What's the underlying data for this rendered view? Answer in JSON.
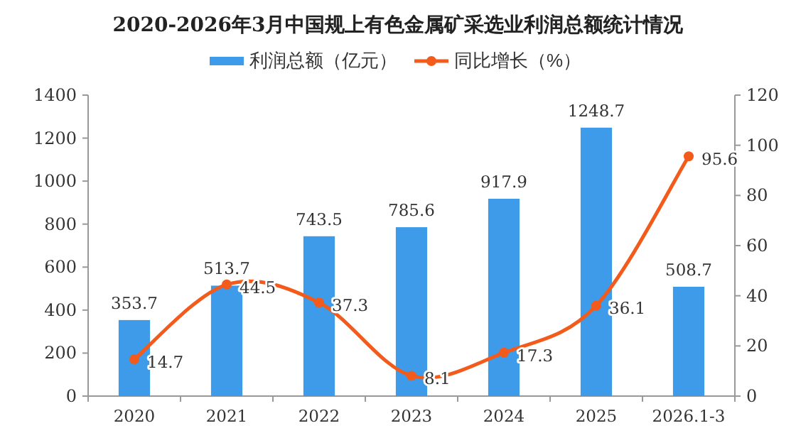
{
  "chart_data": {
    "type": "bar",
    "title": "2020-2026年3月中国规上有色金属矿采选业利润总额统计情况",
    "categories": [
      "2020",
      "2021",
      "2022",
      "2023",
      "2024",
      "2025",
      "2026.1-3"
    ],
    "series": [
      {
        "name": "利润总额（亿元）",
        "color": "#3d9be9",
        "values": [
          353.7,
          513.7,
          743.5,
          785.6,
          917.9,
          1248.7,
          508.7
        ]
      },
      {
        "name": "同比增长（%）",
        "type": "line",
        "axis": "y2",
        "color": "#f25b1b",
        "values": [
          14.7,
          44.5,
          37.3,
          8.1,
          17.3,
          36.1,
          95.6
        ]
      }
    ],
    "ylim": [
      0,
      1400
    ],
    "yticks": [
      0,
      200,
      400,
      600,
      800,
      1000,
      1200,
      1400
    ],
    "y2lim": [
      0,
      120
    ],
    "y2ticks": [
      0,
      20,
      40,
      60,
      80,
      100,
      120
    ],
    "data_labels": true,
    "legend": "top",
    "marker": "circle",
    "grid": false
  }
}
